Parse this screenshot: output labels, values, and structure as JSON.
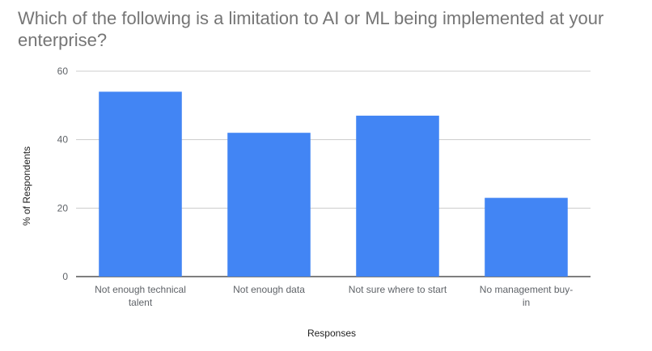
{
  "chart_data": {
    "type": "bar",
    "title": "Which of the following is a limitation to AI or ML being implemented at your enterprise?",
    "xlabel": "Responses",
    "ylabel": "% of Respondents",
    "categories": [
      [
        "Not enough technical",
        "talent"
      ],
      [
        "Not enough data"
      ],
      [
        "Not sure where to start"
      ],
      [
        "No management buy-",
        "in"
      ]
    ],
    "values": [
      54,
      42,
      47,
      23
    ],
    "ylim": [
      0,
      60
    ],
    "yticks": [
      0,
      20,
      40,
      60
    ],
    "grid": true,
    "legend": "none",
    "colors": {
      "bar": "#4285f4",
      "grid": "#cccccc",
      "baseline": "#333333"
    }
  }
}
